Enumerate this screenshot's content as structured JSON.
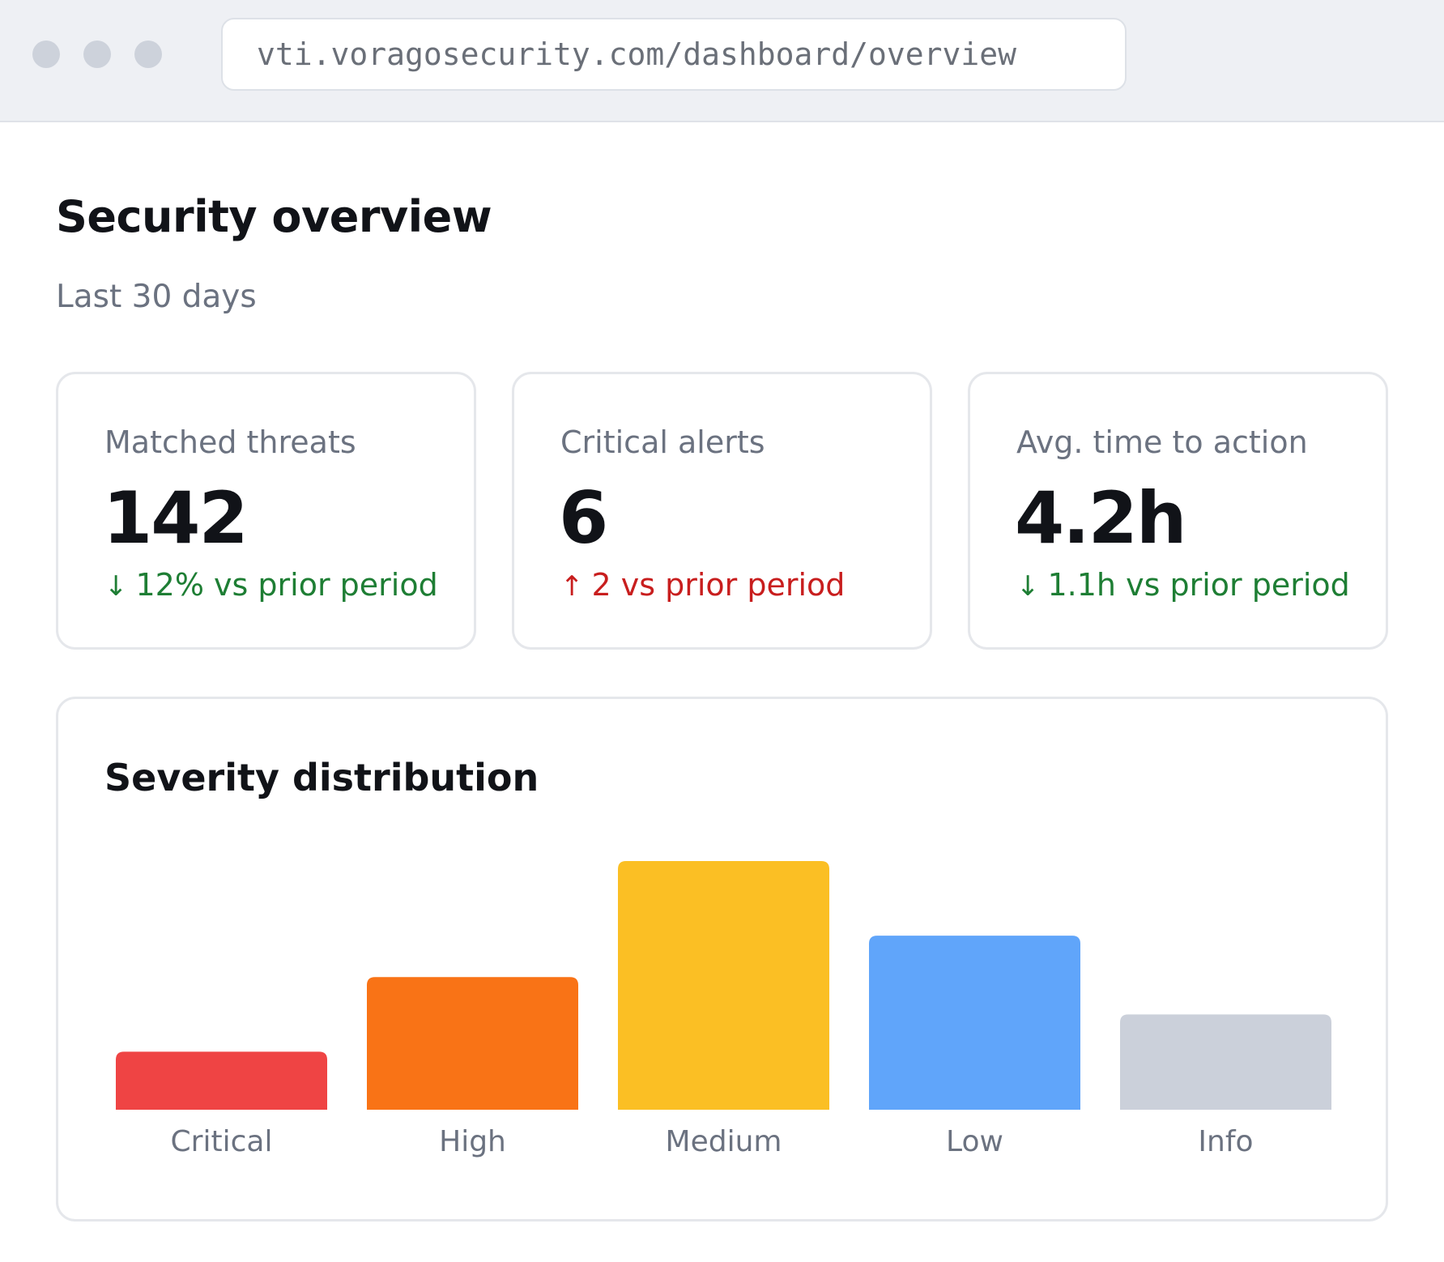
{
  "browser": {
    "url": "vti.voragosecurity.com/dashboard/overview"
  },
  "page": {
    "title": "Security overview",
    "subtitle": "Last 30 days"
  },
  "stats": [
    {
      "label": "Matched threats",
      "value": "142",
      "delta_arrow": "↓",
      "delta_text": "12% vs prior period",
      "trend": "good"
    },
    {
      "label": "Critical alerts",
      "value": "6",
      "delta_arrow": "↑",
      "delta_text": "2 vs prior period",
      "trend": "bad"
    },
    {
      "label": "Avg. time to action",
      "value": "4.2h",
      "delta_arrow": "↓",
      "delta_text": "1.1h vs prior period",
      "trend": "good"
    }
  ],
  "colors": {
    "good": "#1e7e34",
    "bad": "#c81e1e"
  },
  "chart_data": {
    "type": "bar",
    "title": "Severity distribution",
    "categories": [
      "Critical",
      "High",
      "Medium",
      "Low",
      "Info"
    ],
    "values": [
      7,
      16,
      30,
      21,
      11.5
    ],
    "colors": [
      "#ef4444",
      "#f97316",
      "#fbbf24",
      "#60a5fa",
      "#cbd0da"
    ],
    "xlabel": "",
    "ylabel": "",
    "ylim": [
      0,
      30
    ],
    "grid": false,
    "legend": "none"
  }
}
